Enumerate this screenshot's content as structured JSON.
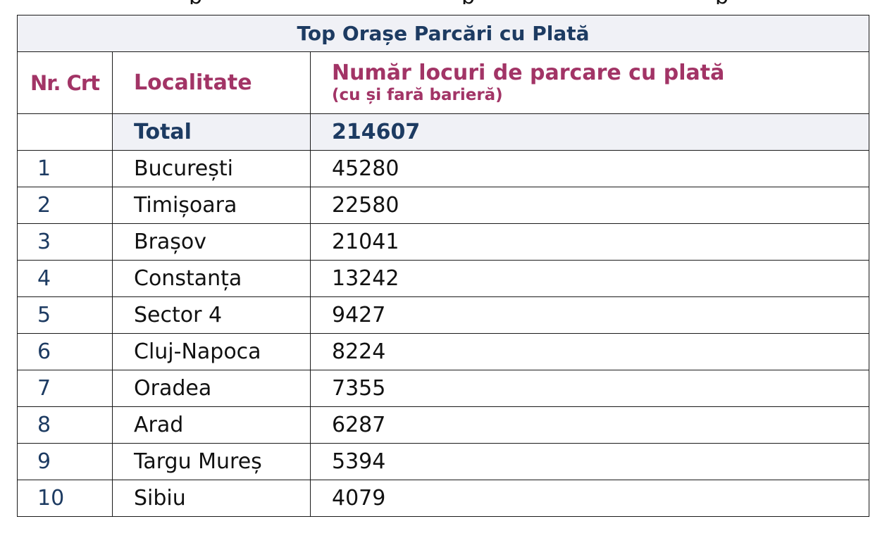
{
  "table": {
    "title": "Top Orașe Parcări cu Plată",
    "headers": {
      "nr": "Nr. Crt",
      "localitate": "Localitate",
      "numar": "Număr locuri de parcare cu plată",
      "numar_sub": "(cu și fară barieră)"
    },
    "total": {
      "label": "Total",
      "value": "214607"
    },
    "rows": [
      {
        "nr": "1",
        "localitate": "București",
        "locuri": "45280"
      },
      {
        "nr": "2",
        "localitate": "Timișoara",
        "locuri": "22580"
      },
      {
        "nr": "3",
        "localitate": "Brașov",
        "locuri": "21041"
      },
      {
        "nr": "4",
        "localitate": "Constanța",
        "locuri": "13242"
      },
      {
        "nr": "5",
        "localitate": "Sector 4",
        "locuri": "9427"
      },
      {
        "nr": "6",
        "localitate": "Cluj-Napoca",
        "locuri": "8224"
      },
      {
        "nr": "7",
        "localitate": "Oradea",
        "locuri": "7355"
      },
      {
        "nr": "8",
        "localitate": "Arad",
        "locuri": "6287"
      },
      {
        "nr": "9",
        "localitate": "Targu Mureș",
        "locuri": "5394"
      },
      {
        "nr": "10",
        "localitate": "Sibiu",
        "locuri": "4079"
      }
    ]
  },
  "colors": {
    "title_text": "#1d3b62",
    "header_text": "#a23466",
    "shade_background": "#f0f1f6",
    "border": "#1a1a1a"
  }
}
